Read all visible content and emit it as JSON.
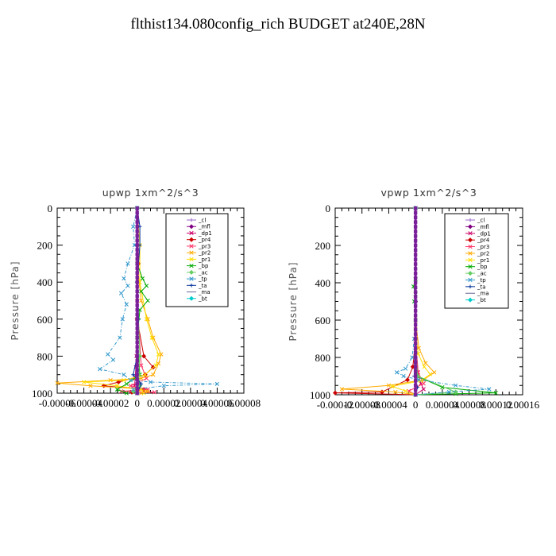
{
  "page": {
    "title": "flthist134.080config_rich  BUDGET at240E,28N"
  },
  "chart_data": [
    {
      "type": "line",
      "title": "upwp   1xm^2/s^3",
      "xlabel": "",
      "ylabel": "Pressure [hPa]",
      "xlim": [
        -6e-05,
        8e-05
      ],
      "ylim": [
        1000,
        0
      ],
      "x_ticks": [
        -6e-05,
        -4e-05,
        -2e-05,
        0,
        2e-05,
        4e-05,
        6e-05,
        8e-05
      ],
      "x_tick_labels": [
        "-0.00006",
        "-0.00004",
        "-0.00002",
        "0",
        "0.00002",
        "0.00004",
        "0.00006",
        "0.00008"
      ],
      "y_ticks": [
        0,
        200,
        400,
        600,
        800,
        1000
      ],
      "y_tick_labels": [
        "0",
        "200",
        "400",
        "600",
        "800",
        "1000"
      ],
      "legend_position": "top-right",
      "series": [
        {
          "name": "_cl",
          "color": "#9966cc",
          "marker": "plus",
          "values": [
            [
              0,
              0
            ],
            [
              2e-07,
              200
            ],
            [
              0,
              400
            ],
            [
              3e-07,
              600
            ],
            [
              0,
              800
            ],
            [
              5e-07,
              900
            ],
            [
              2e-07,
              980
            ],
            [
              0,
              1000
            ]
          ]
        },
        {
          "name": "_mfl",
          "color": "#800080",
          "marker": "diamond",
          "values": [
            [
              0,
              0
            ],
            [
              0,
              200
            ],
            [
              0,
              400
            ],
            [
              0,
              600
            ],
            [
              0,
              800
            ],
            [
              6e-07,
              950
            ],
            [
              0,
              1000
            ]
          ]
        },
        {
          "name": "_dp1",
          "color": "#cc0066",
          "marker": "x",
          "values": [
            [
              0,
              0
            ],
            [
              0,
              600
            ],
            [
              -5e-07,
              800
            ],
            [
              -1e-06,
              860
            ],
            [
              -1.5e-06,
              920
            ],
            [
              -2e-06,
              960
            ],
            [
              0,
              1000
            ]
          ]
        },
        {
          "name": "_pr4",
          "color": "#cc0000",
          "marker": "diamond",
          "values": [
            [
              0,
              0
            ],
            [
              1e-06,
              300
            ],
            [
              0,
              600
            ],
            [
              5e-06,
              800
            ],
            [
              1.2e-05,
              860
            ],
            [
              6e-06,
              900
            ],
            [
              -1.4e-05,
              940
            ],
            [
              -2.5e-05,
              960
            ],
            [
              5e-06,
              980
            ],
            [
              -4e-06,
              995
            ],
            [
              0,
              1000
            ]
          ]
        },
        {
          "name": "_pr3",
          "color": "#ff3366",
          "marker": "x",
          "values": [
            [
              0,
              0
            ],
            [
              0,
              500
            ],
            [
              3e-06,
              850
            ],
            [
              7e-06,
              920
            ],
            [
              -5e-06,
              960
            ],
            [
              8e-06,
              980
            ],
            [
              -1.2e-05,
              990
            ],
            [
              1.3e-05,
              995
            ],
            [
              0,
              1000
            ]
          ]
        },
        {
          "name": "_pr2",
          "color": "#ffaa00",
          "marker": "x",
          "values": [
            [
              0,
              0
            ],
            [
              0,
              300
            ],
            [
              3e-06,
              500
            ],
            [
              8e-06,
              600
            ],
            [
              1.2e-05,
              700
            ],
            [
              1.8e-05,
              790
            ],
            [
              1.6e-05,
              840
            ],
            [
              1.2e-05,
              900
            ],
            [
              3e-06,
              920
            ],
            [
              -2e-05,
              930
            ],
            [
              -6e-05,
              945
            ],
            [
              -3.5e-05,
              960
            ],
            [
              0,
              975
            ],
            [
              8e-06,
              990
            ],
            [
              3e-06,
              1000
            ]
          ]
        },
        {
          "name": "_pr1",
          "color": "#ffdd00",
          "marker": "x",
          "values": [
            [
              0,
              0
            ],
            [
              2e-06,
              200
            ],
            [
              2e-06,
              400
            ],
            [
              7e-06,
              600
            ],
            [
              1.1e-05,
              700
            ],
            [
              1.6e-05,
              790
            ],
            [
              1.4e-05,
              850
            ],
            [
              6e-06,
              900
            ],
            [
              -1e-05,
              930
            ],
            [
              -4e-05,
              940
            ],
            [
              -1.5e-05,
              960
            ],
            [
              3e-06,
              980
            ],
            [
              5e-06,
              1000
            ]
          ]
        },
        {
          "name": "_bp",
          "color": "#00aa00",
          "marker": "x",
          "values": [
            [
              0,
              0
            ],
            [
              0,
              300
            ],
            [
              4e-06,
              380
            ],
            [
              7e-06,
              420
            ],
            [
              3e-06,
              450
            ],
            [
              8e-06,
              500
            ],
            [
              2e-06,
              550
            ],
            [
              0,
              700
            ],
            [
              2e-06,
              900
            ],
            [
              -8e-06,
              950
            ],
            [
              -1.5e-05,
              980
            ],
            [
              -8e-06,
              1000
            ]
          ]
        },
        {
          "name": "_ac",
          "color": "#66cc66",
          "marker": "diamond",
          "values": [
            [
              0,
              0
            ],
            [
              0,
              400
            ],
            [
              1e-06,
              600
            ],
            [
              2e-06,
              800
            ],
            [
              1e-06,
              900
            ],
            [
              2e-06,
              960
            ],
            [
              -3e-06,
              990
            ],
            [
              0,
              1000
            ]
          ]
        },
        {
          "name": "_tp",
          "color": "#3399cc",
          "marker": "x",
          "values": [
            [
              0,
              0
            ],
            [
              -3e-06,
              100
            ],
            [
              -2e-06,
              200
            ],
            [
              -7e-06,
              300
            ],
            [
              -1e-05,
              380
            ],
            [
              -7e-06,
              420
            ],
            [
              -1.2e-05,
              460
            ],
            [
              -8e-06,
              520
            ],
            [
              -1.1e-05,
              600
            ],
            [
              -1.3e-05,
              700
            ],
            [
              -2.2e-05,
              790
            ],
            [
              -1.8e-05,
              820
            ],
            [
              -2.8e-05,
              870
            ],
            [
              -1e-05,
              900
            ],
            [
              -5e-06,
              930
            ],
            [
              1e-05,
              940
            ],
            [
              6e-05,
              950
            ],
            [
              2e-05,
              960
            ],
            [
              -3e-06,
              980
            ],
            [
              0,
              1000
            ]
          ]
        },
        {
          "name": "_ta",
          "color": "#003399",
          "marker": "plus",
          "values": [
            [
              0,
              0
            ],
            [
              2e-06,
              100
            ],
            [
              2e-06,
              200
            ],
            [
              0,
              400
            ],
            [
              1e-06,
              600
            ],
            [
              0,
              800
            ],
            [
              -3e-06,
              900
            ],
            [
              3e-06,
              950
            ],
            [
              0,
              1000
            ]
          ]
        },
        {
          "name": "_ma",
          "color": "#666699",
          "marker": "none",
          "values": [
            [
              0,
              0
            ],
            [
              0,
              500
            ],
            [
              0,
              1000
            ]
          ]
        },
        {
          "name": "_bt",
          "color": "#00cccc",
          "marker": "diamond",
          "values": [
            [
              0,
              0
            ],
            [
              0,
              1000
            ]
          ]
        }
      ]
    },
    {
      "type": "line",
      "title": "vpwp   1xm^2/s^3",
      "xlabel": "",
      "ylabel": "Pressure [hPa]",
      "xlim": [
        -0.00012,
        0.00016
      ],
      "ylim": [
        1000,
        0
      ],
      "x_ticks": [
        -0.00012,
        -8e-05,
        -4e-05,
        0,
        4e-05,
        8e-05,
        0.00012,
        0.00016
      ],
      "x_tick_labels": [
        "-0.00012",
        "-0.00008",
        "-0.00004",
        "0",
        "0.00004",
        "0.00008",
        "0.00012",
        "0.00016"
      ],
      "y_ticks": [
        0,
        200,
        400,
        600,
        800,
        1000
      ],
      "y_tick_labels": [
        "0",
        "200",
        "400",
        "600",
        "800",
        "1000"
      ],
      "legend_position": "top-right",
      "series": [
        {
          "name": "_cl",
          "color": "#9966cc",
          "marker": "plus",
          "values": [
            [
              0,
              0
            ],
            [
              0,
              500
            ],
            [
              2e-06,
              900
            ],
            [
              0,
              1000
            ]
          ]
        },
        {
          "name": "_mfl",
          "color": "#800080",
          "marker": "diamond",
          "values": [
            [
              0,
              0
            ],
            [
              0,
              500
            ],
            [
              0,
              1000
            ]
          ]
        },
        {
          "name": "_dp1",
          "color": "#cc0066",
          "marker": "x",
          "values": [
            [
              0,
              0
            ],
            [
              0,
              700
            ],
            [
              3e-06,
              880
            ],
            [
              8e-06,
              940
            ],
            [
              1.2e-05,
              970
            ],
            [
              0,
              1000
            ]
          ]
        },
        {
          "name": "_pr4",
          "color": "#cc0000",
          "marker": "diamond",
          "values": [
            [
              0,
              0
            ],
            [
              0,
              700
            ],
            [
              -4e-06,
              850
            ],
            [
              -1.2e-05,
              920
            ],
            [
              -5e-05,
              985
            ],
            [
              -0.00012,
              990
            ],
            [
              0,
              1000
            ]
          ]
        },
        {
          "name": "_pr3",
          "color": "#ff3366",
          "marker": "x",
          "values": [
            [
              0,
              0
            ],
            [
              0,
              700
            ],
            [
              4e-06,
              880
            ],
            [
              1.2e-05,
              940
            ],
            [
              -1e-05,
              980
            ],
            [
              0,
              1000
            ]
          ]
        },
        {
          "name": "_pr2",
          "color": "#ffaa00",
          "marker": "x",
          "values": [
            [
              0,
              0
            ],
            [
              0,
              600
            ],
            [
              5e-06,
              750
            ],
            [
              1.5e-05,
              830
            ],
            [
              2.8e-05,
              880
            ],
            [
              1.2e-05,
              920
            ],
            [
              -4e-05,
              950
            ],
            [
              -0.00011,
              970
            ],
            [
              -3e-05,
              985
            ],
            [
              0,
              1000
            ]
          ]
        },
        {
          "name": "_pr1",
          "color": "#ffdd00",
          "marker": "x",
          "values": [
            [
              0,
              0
            ],
            [
              0,
              650
            ],
            [
              4e-06,
              780
            ],
            [
              1.3e-05,
              850
            ],
            [
              2.2e-05,
              890
            ],
            [
              8e-06,
              925
            ],
            [
              -3.5e-05,
              955
            ],
            [
              -1.5e-05,
              980
            ],
            [
              0,
              1000
            ]
          ]
        },
        {
          "name": "_bp",
          "color": "#00aa00",
          "marker": "x",
          "values": [
            [
              0,
              0
            ],
            [
              0,
              380
            ],
            [
              -3e-06,
              420
            ],
            [
              0,
              460
            ],
            [
              -2e-06,
              500
            ],
            [
              0,
              600
            ],
            [
              2e-06,
              900
            ],
            [
              4e-05,
              960
            ],
            [
              0.00012,
              990
            ],
            [
              6e-05,
              995
            ],
            [
              0,
              1000
            ]
          ]
        },
        {
          "name": "_ac",
          "color": "#66cc66",
          "marker": "diamond",
          "values": [
            [
              0,
              0
            ],
            [
              0,
              700
            ],
            [
              3e-06,
              900
            ],
            [
              6e-05,
              985
            ],
            [
              0,
              1000
            ]
          ]
        },
        {
          "name": "_tp",
          "color": "#3399cc",
          "marker": "x",
          "values": [
            [
              0,
              0
            ],
            [
              0,
              500
            ],
            [
              -2e-06,
              700
            ],
            [
              -5e-06,
              800
            ],
            [
              -1.5e-05,
              860
            ],
            [
              -2.8e-05,
              880
            ],
            [
              -1.8e-05,
              900
            ],
            [
              5e-06,
              920
            ],
            [
              6e-05,
              950
            ],
            [
              0.00011,
              970
            ],
            [
              5e-05,
              985
            ],
            [
              0,
              1000
            ]
          ]
        },
        {
          "name": "_ta",
          "color": "#003399",
          "marker": "plus",
          "values": [
            [
              0,
              0
            ],
            [
              0,
              600
            ],
            [
              -2e-06,
              900
            ],
            [
              3e-06,
              960
            ],
            [
              0,
              1000
            ]
          ]
        },
        {
          "name": "_ma",
          "color": "#666699",
          "marker": "none",
          "values": [
            [
              0,
              0
            ],
            [
              0,
              1000
            ]
          ]
        },
        {
          "name": "_bt",
          "color": "#00cccc",
          "marker": "diamond",
          "values": [
            [
              0,
              0
            ],
            [
              0,
              1000
            ]
          ]
        }
      ]
    }
  ]
}
